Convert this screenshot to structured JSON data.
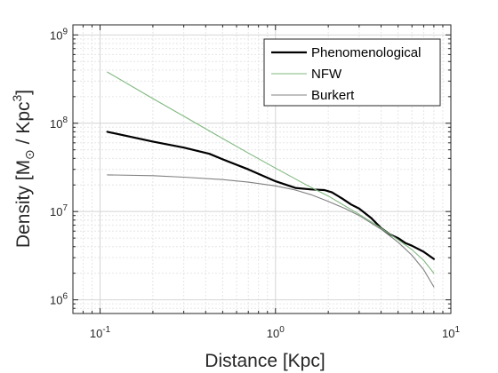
{
  "chart_data": {
    "type": "line",
    "xscale": "log",
    "yscale": "log",
    "xlim": [
      0.07,
      10
    ],
    "ylim": [
      700000,
      1300000000
    ],
    "xticks": [
      {
        "value": 0.1,
        "base": "10",
        "exp": "-1"
      },
      {
        "value": 1,
        "base": "10",
        "exp": "0"
      },
      {
        "value": 10,
        "base": "10",
        "exp": "1"
      }
    ],
    "yticks": [
      {
        "value": 1000000,
        "base": "10",
        "exp": "6"
      },
      {
        "value": 10000000,
        "base": "10",
        "exp": "7"
      },
      {
        "value": 100000000,
        "base": "10",
        "exp": "8"
      },
      {
        "value": 1000000000,
        "base": "10",
        "exp": "9"
      }
    ],
    "grid": true,
    "legend_position": "top-right",
    "xlabel": {
      "main": "Distance",
      "unit": "[Kpc]"
    },
    "ylabel": {
      "main": "Density",
      "open": "[M",
      "sub": "⊙",
      "mid": "/ Kpc",
      "sup": "3",
      "close": "]"
    },
    "series": [
      {
        "name": "Phenomenological",
        "color": "#000000",
        "x": [
          0.11,
          0.2,
          0.3,
          0.42,
          0.5,
          0.7,
          1.0,
          1.3,
          1.6,
          1.9,
          2.1,
          2.4,
          2.7,
          3.0,
          3.5,
          4.0,
          4.5,
          5.0,
          5.5,
          6.0,
          7.0,
          8.0
        ],
        "y": [
          80000000,
          62000000,
          53000000,
          45000000,
          39000000,
          30000000,
          22000000,
          18500000,
          17800000,
          17500000,
          16500000,
          14000000,
          12000000,
          10800000,
          8500000,
          6500000,
          5500000,
          5000000,
          4400000,
          4100000,
          3500000,
          2900000
        ]
      },
      {
        "name": "NFW",
        "color": "#7fb87f",
        "x": [
          0.11,
          0.2,
          0.3,
          0.5,
          0.7,
          1.0,
          1.5,
          2.0,
          3.0,
          4.0,
          5.0,
          6.0,
          7.0,
          8.0
        ],
        "y": [
          380000000,
          190000000,
          120000000,
          67000000,
          46000000,
          31000000,
          20000000,
          15000000,
          9300000,
          6500000,
          4800000,
          3700000,
          2800000,
          2000000
        ]
      },
      {
        "name": "Burkert",
        "color": "#808080",
        "x": [
          0.11,
          0.2,
          0.3,
          0.5,
          0.7,
          1.0,
          1.3,
          1.6,
          2.0,
          2.5,
          3.0,
          4.0,
          5.0,
          6.0,
          7.0,
          8.0
        ],
        "y": [
          26000000,
          25500000,
          24500000,
          23000000,
          21500000,
          19500000,
          17500000,
          15500000,
          13000000,
          10800000,
          9000000,
          6300000,
          4500000,
          3200000,
          2200000,
          1400000
        ]
      }
    ]
  }
}
